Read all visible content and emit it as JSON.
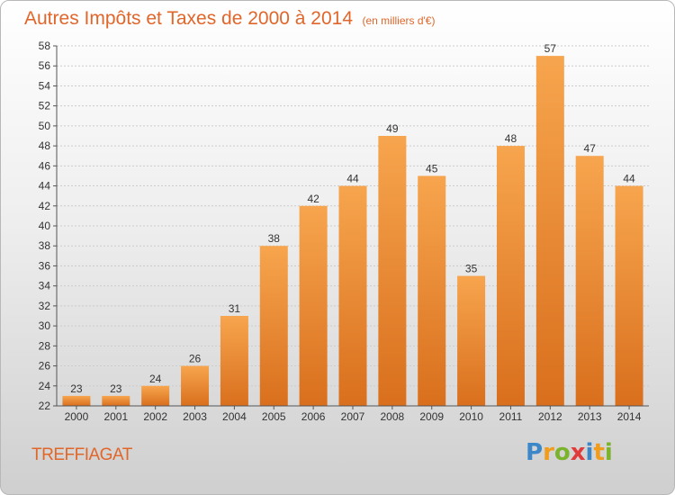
{
  "colors": {
    "title": "#e0662a",
    "bar_top": "#f7a54e",
    "bar_bottom": "#d96f1d",
    "grid": "#cccccc",
    "axis_text": "#333333"
  },
  "logo": {
    "text": "Proxiti",
    "letter_colors": [
      "#3b87c8",
      "#f09c1d",
      "#7bb42c",
      "#e03a3a",
      "#3b87c8",
      "#f09c1d",
      "#7bb42c"
    ]
  },
  "chart_data": {
    "type": "bar",
    "title": "Autres Impôts et Taxes de 2000 à 2014",
    "subtitle": "(en milliers d'€)",
    "place": "TREFFIAGAT",
    "categories": [
      "2000",
      "2001",
      "2002",
      "2003",
      "2004",
      "2005",
      "2006",
      "2007",
      "2008",
      "2009",
      "2010",
      "2011",
      "2012",
      "2013",
      "2014"
    ],
    "values": [
      23,
      23,
      24,
      26,
      31,
      38,
      42,
      44,
      49,
      45,
      35,
      48,
      57,
      47,
      44
    ],
    "value_labels": [
      "23",
      "23",
      "24",
      "26",
      "31",
      "38",
      "42",
      "44",
      "49",
      "45",
      "35",
      "48",
      "57",
      "47",
      "44"
    ],
    "ylim": [
      22,
      58
    ],
    "yticks": [
      22,
      24,
      26,
      28,
      30,
      32,
      34,
      36,
      38,
      40,
      42,
      44,
      46,
      48,
      50,
      52,
      54,
      56,
      58
    ],
    "ytick_labels": [
      "22",
      "24",
      "26",
      "28",
      "30",
      "32",
      "34",
      "36",
      "38",
      "40",
      "42",
      "44",
      "46",
      "48",
      "50",
      "52",
      "54",
      "56",
      "58"
    ],
    "grid": true,
    "legend": "none"
  }
}
